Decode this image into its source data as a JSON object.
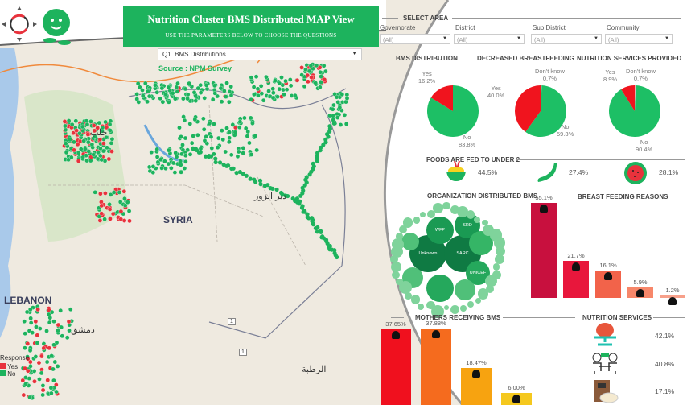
{
  "header": {
    "title": "Nutrition Cluster BMS Distributed MAP View",
    "subtitle": "USE THE PARAMETERS BELOW TO CHOOSE THE QUESTIONS",
    "question_select": "Q1. BMS Distributions",
    "source": "Source : NPM Survey"
  },
  "map": {
    "labels": {
      "syria": "SYRIA",
      "lebanon": "LEBANON",
      "aleppo": "حلب",
      "deir_ez_zor": "دير الزور",
      "rutba": "الرطبة",
      "damascus": "دمشق",
      "road1": "1",
      "road2": "1"
    },
    "legend": {
      "title": "Response",
      "yes": "Yes",
      "no": "No"
    },
    "colors": {
      "yes": "#e8323c",
      "no": "#1db35d"
    }
  },
  "filters": {
    "title": "SELECT AREA",
    "items": [
      {
        "label": "Governorate",
        "value": "(All)"
      },
      {
        "label": "District",
        "value": "(All)"
      },
      {
        "label": "Sub District",
        "value": "(All)"
      },
      {
        "label": "Community",
        "value": "(All)"
      }
    ]
  },
  "pies": [
    {
      "title": "BMS DISTRIBUTION",
      "slices": [
        {
          "label": "Yes",
          "value": 16.2,
          "text": "16.2%"
        },
        {
          "label": "No",
          "value": 83.8,
          "text": "83.8%"
        }
      ]
    },
    {
      "title": "DECREASED BREASTFEEDING",
      "slices": [
        {
          "label": "Yes",
          "value": 40.0,
          "text": "40.0%"
        },
        {
          "label": "No",
          "value": 59.3,
          "text": "59.3%"
        },
        {
          "label": "Don't know",
          "value": 0.7,
          "text": "0.7%"
        }
      ]
    },
    {
      "title": "NUTRITION SERVICES PROVIDED",
      "slices": [
        {
          "label": "Yes",
          "value": 8.9,
          "text": "8.9%"
        },
        {
          "label": "No",
          "value": 90.4,
          "text": "90.4%"
        },
        {
          "label": "Don't know",
          "value": 0.7,
          "text": "0.7%"
        }
      ]
    }
  ],
  "foods": {
    "title": "FOODS ARE FED TO UNDER 2",
    "items": [
      {
        "icon": "rice-bowl-icon",
        "value": "44.5%"
      },
      {
        "icon": "green-bean-icon",
        "value": "27.4%"
      },
      {
        "icon": "watermelon-icon",
        "value": "28.1%"
      }
    ]
  },
  "orgs": {
    "title": "ORGANIZATION DISTRIBUTED BMS",
    "labels": [
      "Unknown",
      "SARC",
      "WFP",
      "SRD",
      "UNICEF"
    ]
  },
  "bf_reasons": {
    "title": "BREAST FEEDING REASONS",
    "values": [
      55.1,
      21.7,
      16.1,
      5.9,
      1.2
    ],
    "labels": [
      "55.1%",
      "21.7%",
      "16.1%",
      "5.9%",
      "1.2%"
    ],
    "colors": [
      "#c8103e",
      "#e8173c",
      "#f2634a",
      "#f7876a",
      "#f7a08a"
    ]
  },
  "mothers": {
    "title": "MOTHERS RECEIVING BMS",
    "values": [
      37.65,
      37.88,
      18.47,
      6.0
    ],
    "labels": [
      "37.65%",
      "37.88%",
      "18.47%",
      "6.00%"
    ],
    "colors": [
      "#f0101e",
      "#f56b1e",
      "#f7a310",
      "#f5c81e"
    ]
  },
  "nutrition_services": {
    "title": "NUTRITION SERVICES",
    "items": [
      {
        "icon": "weighing-scale-icon",
        "value": "42.1%"
      },
      {
        "icon": "counseling-icon",
        "value": "40.8%"
      },
      {
        "icon": "food-supplement-icon",
        "value": "17.1%"
      }
    ]
  }
}
